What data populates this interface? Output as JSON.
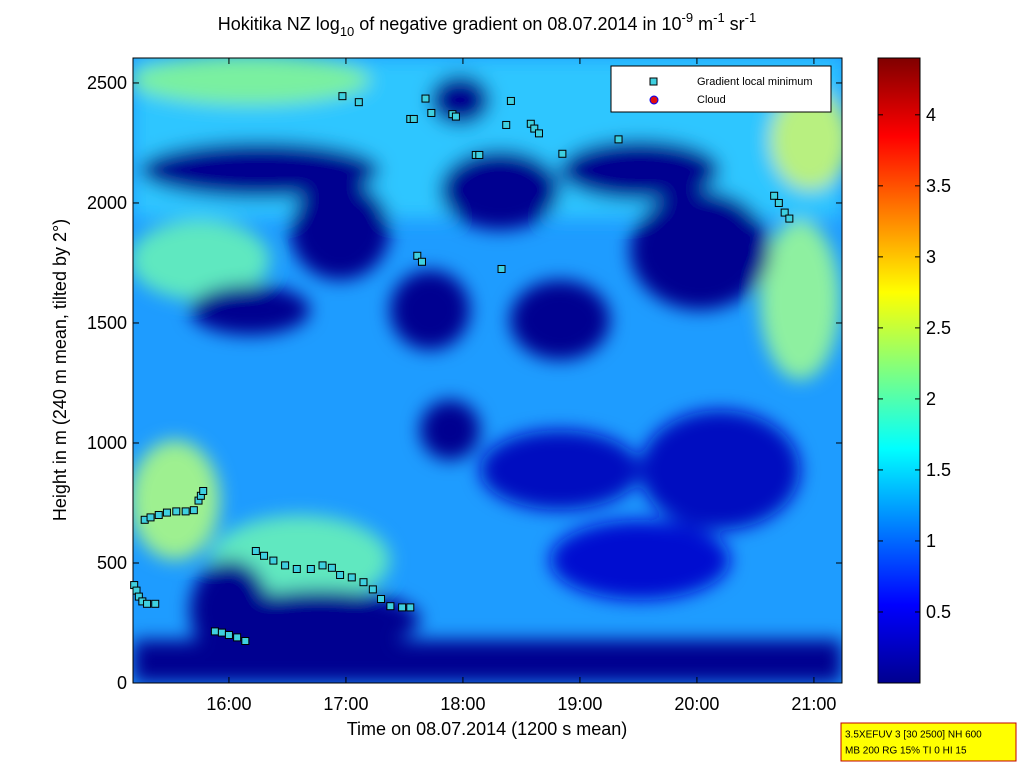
{
  "chart_data": {
    "type": "heatmap",
    "title": [
      "Hokitika NZ log",
      "10",
      " of negative gradient on 08.07.2014 in 10",
      "-9",
      " m",
      "-1",
      " sr",
      "-1"
    ],
    "x_label": "Time on 08.07.2014 (1200 s mean)",
    "y_label": "Height in m (240 m mean, tilted by 2°)",
    "xlim": [
      15.18,
      21.24
    ],
    "xticks": [
      {
        "value": 16,
        "label": "16:00"
      },
      {
        "value": 17,
        "label": "17:00"
      },
      {
        "value": 18,
        "label": "18:00"
      },
      {
        "value": 19,
        "label": "19:00"
      },
      {
        "value": 20,
        "label": "20:00"
      },
      {
        "value": 21,
        "label": "21:00"
      }
    ],
    "ylim": [
      0,
      2604
    ],
    "yticks": [
      0,
      500,
      1000,
      1500,
      2000,
      2500
    ],
    "clim": [
      0,
      4.4
    ],
    "cticks": [
      0.5,
      1,
      1.5,
      2,
      2.5,
      3,
      3.5,
      4
    ],
    "colormap": "jet",
    "legend_position": "upper right",
    "series": [
      {
        "name": "Gradient local minimum",
        "color": "#3fd0e0",
        "marker": "square",
        "x": [
          15.19,
          15.21,
          15.23,
          15.26,
          15.3,
          15.37,
          15.28,
          15.33,
          15.4,
          15.47,
          15.55,
          15.63,
          15.7,
          15.74,
          15.76,
          15.78,
          15.88,
          15.94,
          16.0,
          16.07,
          16.14,
          16.23,
          16.3,
          16.38,
          16.48,
          16.58,
          16.7,
          16.8,
          16.88,
          16.95,
          17.05,
          17.15,
          17.23,
          17.3,
          17.38,
          17.48,
          17.55,
          16.97,
          17.11,
          17.55,
          17.58,
          17.68,
          17.73,
          17.91,
          17.94,
          18.11,
          18.14,
          18.41,
          18.37,
          18.58,
          18.61,
          18.65,
          18.85,
          19.33,
          17.61,
          17.65,
          18.33,
          20.66,
          20.7,
          20.75,
          20.79
        ],
        "values": [
          408,
          385,
          360,
          340,
          330,
          330,
          680,
          690,
          700,
          710,
          715,
          715,
          720,
          760,
          780,
          800,
          215,
          210,
          200,
          190,
          175,
          550,
          530,
          510,
          490,
          475,
          475,
          490,
          480,
          450,
          440,
          420,
          390,
          350,
          320,
          315,
          315,
          2445,
          2420,
          2350,
          2350,
          2435,
          2375,
          2370,
          2360,
          2200,
          2200,
          2425,
          2325,
          2330,
          2310,
          2290,
          2205,
          2265,
          1780,
          1755,
          1725,
          2030,
          2000,
          1960,
          1935
        ]
      },
      {
        "name": "Cloud",
        "color": "#e01010",
        "marker": "circle",
        "x": [],
        "values": []
      }
    ],
    "info": [
      "3.5XEFUV 3 [30 2500] NH 600",
      "MB 200 RG 15% TI 0 HI 15"
    ]
  }
}
